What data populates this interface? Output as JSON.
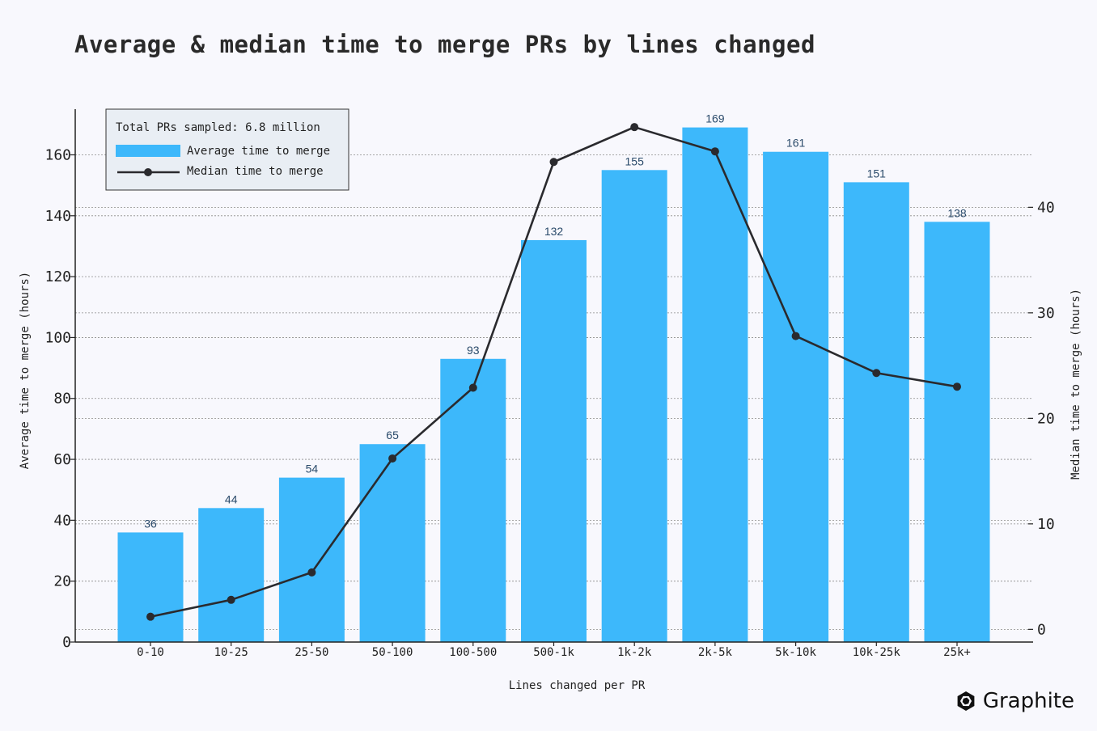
{
  "chart_data": {
    "type": "bar",
    "title": "Average & median time to merge PRs by lines changed",
    "xlabel": "Lines changed per PR",
    "ylabel": "Average time to merge (hours)",
    "y2label": "Median time to merge (hours)",
    "categories": [
      "0-10",
      "10-25",
      "25-50",
      "50-100",
      "100-500",
      "500-1k",
      "1k-2k",
      "2k-5k",
      "5k-10k",
      "10k-25k",
      "25k+"
    ],
    "ylim": [
      0,
      175
    ],
    "y2lim": [
      -1.2,
      49.3
    ],
    "yticks": [
      0,
      20,
      40,
      60,
      80,
      100,
      120,
      140,
      160
    ],
    "y2ticks": [
      0,
      10,
      20,
      30,
      40
    ],
    "grid": true,
    "legend_position": "top-left",
    "series": [
      {
        "name": "Average time to merge",
        "type": "bar",
        "axis": "left",
        "color": "#3db8fb",
        "values": [
          36,
          44,
          54,
          65,
          93,
          132,
          155,
          169,
          161,
          151,
          138
        ]
      },
      {
        "name": "Median time to merge",
        "type": "line",
        "axis": "right",
        "color": "#2a2a2e",
        "values": [
          1.2,
          2.8,
          5.4,
          16.2,
          22.9,
          44.3,
          47.6,
          45.3,
          27.8,
          24.3,
          23.0
        ]
      }
    ],
    "annotation": "Total PRs sampled: 6.8 million"
  },
  "brand": {
    "name": "Graphite",
    "icon": "graphite-logo-icon"
  }
}
